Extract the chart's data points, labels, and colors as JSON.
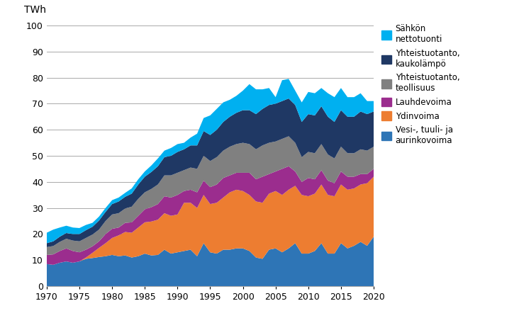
{
  "years": [
    1970,
    1971,
    1972,
    1973,
    1974,
    1975,
    1976,
    1977,
    1978,
    1979,
    1980,
    1981,
    1982,
    1983,
    1984,
    1985,
    1986,
    1987,
    1988,
    1989,
    1990,
    1991,
    1992,
    1993,
    1994,
    1995,
    1996,
    1997,
    1998,
    1999,
    2000,
    2001,
    2002,
    2003,
    2004,
    2005,
    2006,
    2007,
    2008,
    2009,
    2010,
    2011,
    2012,
    2013,
    2014,
    2015,
    2016,
    2017,
    2018,
    2019,
    2020
  ],
  "vesi_tuuli_aurinko": [
    8.5,
    8.2,
    9.0,
    9.5,
    9.0,
    9.5,
    10.5,
    10.8,
    11.2,
    11.5,
    12.0,
    11.5,
    11.8,
    11.0,
    11.5,
    12.5,
    11.8,
    12.0,
    14.0,
    12.5,
    13.0,
    13.5,
    14.0,
    11.5,
    16.5,
    13.0,
    12.5,
    14.0,
    14.0,
    14.5,
    14.5,
    13.5,
    11.0,
    10.5,
    14.0,
    14.5,
    13.0,
    14.5,
    16.5,
    12.5,
    12.5,
    13.5,
    16.5,
    12.5,
    12.5,
    16.5,
    14.5,
    15.5,
    17.0,
    15.5,
    19.0
  ],
  "ydinvoima": [
    0,
    0,
    0,
    0,
    0,
    0,
    0.5,
    2.0,
    3.5,
    5.0,
    6.5,
    8.0,
    9.0,
    9.5,
    11.0,
    12.0,
    13.0,
    13.5,
    14.0,
    14.5,
    14.5,
    18.5,
    18.0,
    18.5,
    18.5,
    18.5,
    19.5,
    20.0,
    22.0,
    22.5,
    22.0,
    21.5,
    21.5,
    21.5,
    21.5,
    22.0,
    22.0,
    22.5,
    22.0,
    22.5,
    22.0,
    22.0,
    22.5,
    22.5,
    22.0,
    22.5,
    22.5,
    22.0,
    22.0,
    24.0,
    23.0
  ],
  "lauhdevoima": [
    3.5,
    4.0,
    4.5,
    5.0,
    4.5,
    3.5,
    3.0,
    2.5,
    2.5,
    3.5,
    3.5,
    3.0,
    3.5,
    4.0,
    4.5,
    5.0,
    5.5,
    6.0,
    6.5,
    7.0,
    7.5,
    4.5,
    5.0,
    6.0,
    5.5,
    6.5,
    7.0,
    7.5,
    6.5,
    6.5,
    7.0,
    8.5,
    8.5,
    10.0,
    7.5,
    7.5,
    10.0,
    9.0,
    5.5,
    5.0,
    7.0,
    5.5,
    5.5,
    5.5,
    5.0,
    5.0,
    5.0,
    4.5,
    4.0,
    3.5,
    3.0
  ],
  "yhteistuotanto_teollisuus": [
    3.0,
    3.2,
    3.5,
    3.7,
    4.0,
    4.2,
    4.5,
    4.5,
    4.5,
    5.0,
    5.5,
    5.5,
    5.5,
    6.0,
    6.5,
    6.5,
    7.0,
    7.5,
    8.0,
    8.5,
    8.5,
    8.0,
    8.5,
    9.0,
    9.5,
    10.0,
    10.5,
    10.5,
    11.0,
    11.0,
    11.5,
    11.0,
    11.5,
    12.0,
    12.0,
    11.5,
    11.5,
    11.5,
    11.0,
    9.5,
    10.0,
    10.0,
    10.0,
    10.0,
    9.5,
    9.5,
    9.0,
    9.0,
    9.5,
    9.0,
    8.5
  ],
  "yhteistuotanto_kaukolampo": [
    1.5,
    1.8,
    2.0,
    2.2,
    2.5,
    2.8,
    3.0,
    3.0,
    3.5,
    3.5,
    4.0,
    4.5,
    4.5,
    5.0,
    5.5,
    6.0,
    6.5,
    7.0,
    7.0,
    7.5,
    8.0,
    8.0,
    8.5,
    9.0,
    9.5,
    10.0,
    10.5,
    11.0,
    11.5,
    12.0,
    12.5,
    13.0,
    13.5,
    14.0,
    14.5,
    14.5,
    14.5,
    14.5,
    14.5,
    13.5,
    14.5,
    14.5,
    14.5,
    14.5,
    14.0,
    14.0,
    14.0,
    14.0,
    14.5,
    14.0,
    13.5
  ],
  "sahkon_nettotuonti": [
    4.0,
    4.5,
    3.5,
    2.8,
    2.5,
    2.3,
    2.0,
    1.5,
    1.5,
    1.5,
    1.5,
    1.5,
    1.5,
    2.0,
    2.0,
    2.0,
    2.5,
    3.0,
    2.5,
    3.0,
    3.0,
    2.5,
    3.0,
    4.5,
    5.0,
    7.5,
    8.0,
    7.5,
    6.5,
    6.5,
    7.5,
    10.0,
    9.5,
    7.5,
    6.5,
    2.5,
    8.0,
    7.5,
    5.5,
    7.5,
    8.5,
    8.5,
    7.0,
    9.0,
    9.5,
    8.5,
    7.5,
    7.5,
    7.0,
    5.0,
    4.0
  ],
  "colors": {
    "vesi_tuuli_aurinko": "#2E75B6",
    "ydinvoima": "#ED7D31",
    "lauhdevoima": "#9B2D8E",
    "yhteistuotanto_teollisuus": "#808080",
    "yhteistuotanto_kaukolampo": "#1F3864",
    "sahkon_nettotuonti": "#00B0F0"
  },
  "labels": {
    "vesi_tuuli_aurinko": "Vesi-, tuuli- ja\naurinkovoima",
    "ydinvoima": "Ydinvoima",
    "lauhdevoima": "Lauhdevoima",
    "yhteistuotanto_teollisuus": "Yhteistuotanto,\nteollisuus",
    "yhteistuotanto_kaukolampo": "Yhteistuotanto,\nkaukolämpö",
    "sahkon_nettotuonti": "Sähkön\nnettotuonti"
  },
  "twh_label": "TWh",
  "ylim": [
    0,
    100
  ],
  "xlim": [
    1970,
    2020
  ],
  "yticks": [
    0,
    10,
    20,
    30,
    40,
    50,
    60,
    70,
    80,
    90,
    100
  ],
  "xticks": [
    1970,
    1975,
    1980,
    1985,
    1990,
    1995,
    2000,
    2005,
    2010,
    2015,
    2020
  ],
  "bg_color": "#ffffff",
  "grid_color": "#aaaaaa"
}
